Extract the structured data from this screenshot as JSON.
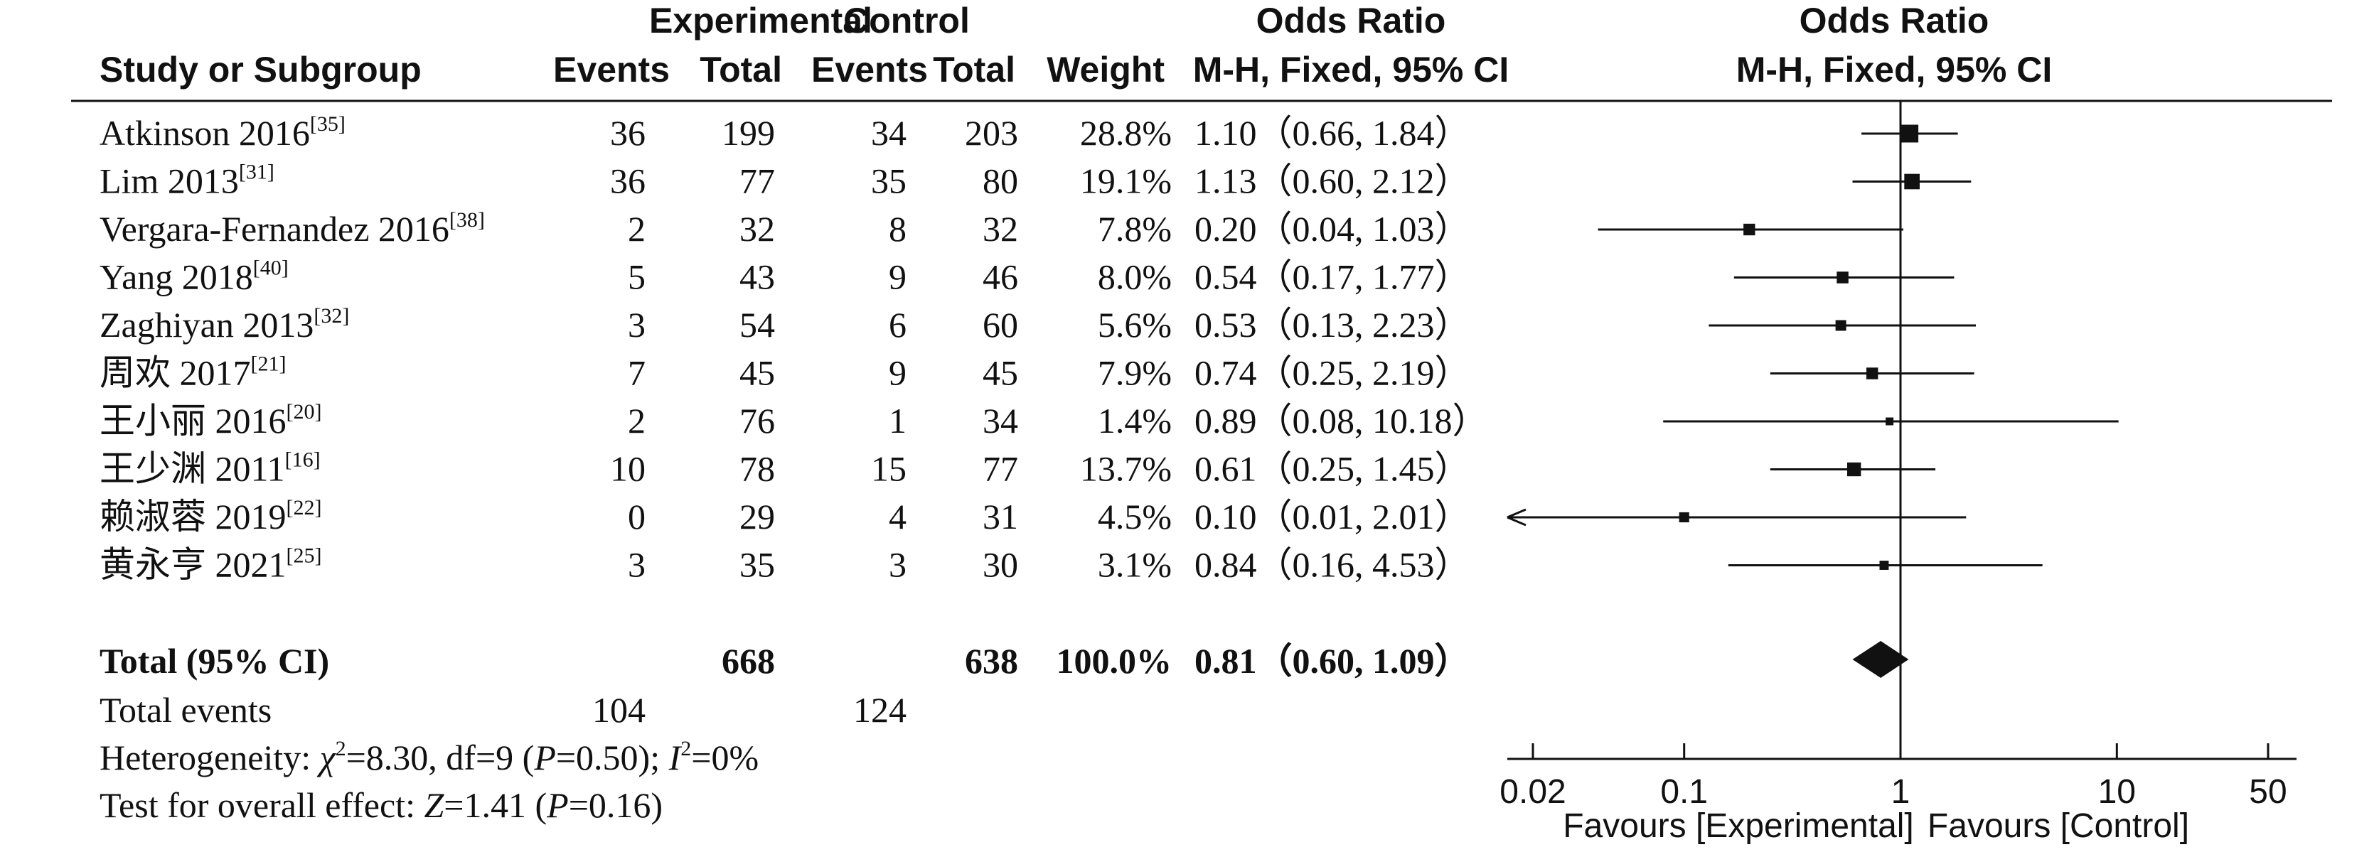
{
  "header": {
    "study": "Study or Subgroup",
    "experimental": "Experimental",
    "control": "Control",
    "events": "Events",
    "total": "Total",
    "weight": "Weight",
    "or_title": "Odds Ratio",
    "or_method": "M-H, Fixed, 95% CI",
    "plot_title": "Odds Ratio",
    "plot_method": "M-H, Fixed, 95% CI"
  },
  "chart_data": {
    "type": "forest",
    "x_scale": "log",
    "xlim": [
      0.02,
      50
    ],
    "xticks": [
      "0.02",
      "0.1",
      "1",
      "10",
      "50"
    ],
    "null_value": 1,
    "studies": [
      {
        "name": "Atkinson 2016",
        "ref": "[35]",
        "exp_events": "36",
        "exp_total": "199",
        "ctrl_events": "34",
        "ctrl_total": "203",
        "weight": "28.8%",
        "ci_text": "1.10（0.66, 1.84）",
        "or": 1.1,
        "lo": 0.66,
        "hi": 1.84
      },
      {
        "name": "Lim 2013",
        "ref": "[31]",
        "exp_events": "36",
        "exp_total": "77",
        "ctrl_events": "35",
        "ctrl_total": "80",
        "weight": "19.1%",
        "ci_text": "1.13（0.60, 2.12）",
        "or": 1.13,
        "lo": 0.6,
        "hi": 2.12
      },
      {
        "name": "Vergara-Fernandez 2016",
        "ref": "[38]",
        "exp_events": "2",
        "exp_total": "32",
        "ctrl_events": "8",
        "ctrl_total": "32",
        "weight": "7.8%",
        "ci_text": "0.20（0.04, 1.03）",
        "or": 0.2,
        "lo": 0.04,
        "hi": 1.03
      },
      {
        "name": "Yang 2018",
        "ref": "[40]",
        "exp_events": "5",
        "exp_total": "43",
        "ctrl_events": "9",
        "ctrl_total": "46",
        "weight": "8.0%",
        "ci_text": "0.54（0.17, 1.77）",
        "or": 0.54,
        "lo": 0.17,
        "hi": 1.77
      },
      {
        "name": "Zaghiyan 2013",
        "ref": "[32]",
        "exp_events": "3",
        "exp_total": "54",
        "ctrl_events": "6",
        "ctrl_total": "60",
        "weight": "5.6%",
        "ci_text": "0.53（0.13, 2.23）",
        "or": 0.53,
        "lo": 0.13,
        "hi": 2.23
      },
      {
        "name": "周欢 2017",
        "ref": "[21]",
        "exp_events": "7",
        "exp_total": "45",
        "ctrl_events": "9",
        "ctrl_total": "45",
        "weight": "7.9%",
        "ci_text": "0.74（0.25, 2.19）",
        "or": 0.74,
        "lo": 0.25,
        "hi": 2.19
      },
      {
        "name": "王小丽 2016",
        "ref": "[20]",
        "exp_events": "2",
        "exp_total": "76",
        "ctrl_events": "1",
        "ctrl_total": "34",
        "weight": "1.4%",
        "ci_text": "0.89（0.08, 10.18）",
        "or": 0.89,
        "lo": 0.08,
        "hi": 10.18
      },
      {
        "name": "王少渊 2011",
        "ref": "[16]",
        "exp_events": "10",
        "exp_total": "78",
        "ctrl_events": "15",
        "ctrl_total": "77",
        "weight": "13.7%",
        "ci_text": "0.61（0.25, 1.45）",
        "or": 0.61,
        "lo": 0.25,
        "hi": 1.45
      },
      {
        "name": "赖淑蓉 2019",
        "ref": "[22]",
        "exp_events": "0",
        "exp_total": "29",
        "ctrl_events": "4",
        "ctrl_total": "31",
        "weight": "4.5%",
        "ci_text": "0.10（0.01, 2.01）",
        "or": 0.1,
        "lo": 0.01,
        "hi": 2.01
      },
      {
        "name": "黄永亨 2021",
        "ref": "[25]",
        "exp_events": "3",
        "exp_total": "35",
        "ctrl_events": "3",
        "ctrl_total": "30",
        "weight": "3.1%",
        "ci_text": "0.84（0.16, 4.53）",
        "or": 0.84,
        "lo": 0.16,
        "hi": 4.53
      }
    ],
    "total": {
      "label": "Total (95% CI)",
      "exp_total": "668",
      "ctrl_total": "638",
      "weight": "100.0%",
      "ci_text": "0.81（0.60, 1.09）",
      "or": 0.81,
      "lo": 0.6,
      "hi": 1.09
    },
    "total_events": {
      "label": "Total events",
      "exp": "104",
      "ctrl": "124"
    },
    "heterogeneity": {
      "prefix": "Heterogeneity: ",
      "chi_symbol": "χ",
      "chi_sq": "2",
      "chi_value": "=8.30, df=9 (",
      "p_letter": "P",
      "p_value": "=0.50); ",
      "i_letter": "I",
      "i_sq": "2",
      "i_value": "=0%"
    },
    "overall": {
      "prefix": "Test for overall effect: ",
      "z_letter": "Z",
      "z_value": "=1.41 (",
      "p_letter": "P",
      "p_value": "=0.16)"
    },
    "favours_left": "Favours [Experimental]",
    "favours_right": "Favours [Control]"
  }
}
